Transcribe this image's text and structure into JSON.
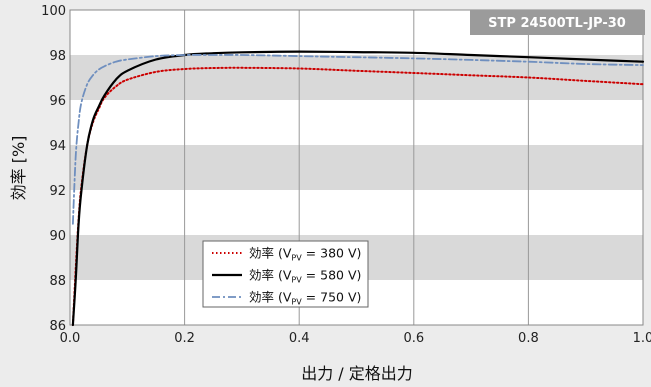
{
  "badge": "STP 24500TL-JP-30",
  "chart_data": {
    "type": "line",
    "xlabel": "出力 / 定格出力",
    "ylabel": "効率 [%]",
    "xlim": [
      0.0,
      1.0
    ],
    "ylim": [
      86,
      100
    ],
    "x_ticks": [
      "0.0",
      "0.2",
      "0.4",
      "0.6",
      "0.8",
      "1.0"
    ],
    "y_ticks": [
      "86",
      "88",
      "90",
      "92",
      "94",
      "96",
      "98",
      "100"
    ],
    "grid": "vertical lines at x ticks, alternating grey horizontal bands",
    "legend_position": "bottom-left",
    "series": [
      {
        "label_main": "効率 (V",
        "label_sub": "PV",
        "label_tail": " = 380 V)",
        "color": "#cc0000",
        "style": "dotted",
        "x": [
          0.005,
          0.01,
          0.015,
          0.02,
          0.03,
          0.04,
          0.05,
          0.06,
          0.08,
          0.1,
          0.15,
          0.2,
          0.25,
          0.3,
          0.4,
          0.5,
          0.6,
          0.7,
          0.8,
          0.9,
          1.0
        ],
        "y": [
          86.0,
          88.5,
          90.7,
          92.2,
          94.0,
          95.0,
          95.6,
          96.1,
          96.6,
          96.9,
          97.25,
          97.38,
          97.42,
          97.43,
          97.4,
          97.3,
          97.2,
          97.1,
          97.0,
          96.85,
          96.7
        ]
      },
      {
        "label_main": "効率 (V",
        "label_sub": "PV",
        "label_tail": " = 580 V)",
        "color": "#000000",
        "style": "solid",
        "x": [
          0.005,
          0.01,
          0.015,
          0.02,
          0.03,
          0.04,
          0.05,
          0.06,
          0.08,
          0.1,
          0.15,
          0.2,
          0.25,
          0.3,
          0.4,
          0.5,
          0.6,
          0.7,
          0.8,
          0.9,
          1.0
        ],
        "y": [
          86.0,
          88.0,
          90.5,
          92.0,
          94.0,
          95.1,
          95.7,
          96.2,
          96.9,
          97.3,
          97.8,
          98.0,
          98.08,
          98.12,
          98.15,
          98.13,
          98.1,
          98.0,
          97.9,
          97.8,
          97.7
        ]
      },
      {
        "label_main": "効率 (V",
        "label_sub": "PV",
        "label_tail": " = 750 V)",
        "color": "#6f8fbf",
        "style": "dashdot",
        "x": [
          0.005,
          0.01,
          0.015,
          0.02,
          0.03,
          0.04,
          0.05,
          0.06,
          0.08,
          0.1,
          0.15,
          0.2,
          0.25,
          0.3,
          0.4,
          0.5,
          0.6,
          0.7,
          0.8,
          0.9,
          1.0
        ],
        "y": [
          90.5,
          93.5,
          95.0,
          95.9,
          96.7,
          97.1,
          97.35,
          97.5,
          97.7,
          97.8,
          97.95,
          98.0,
          98.0,
          98.0,
          97.95,
          97.9,
          97.85,
          97.78,
          97.7,
          97.6,
          97.55
        ]
      }
    ]
  }
}
